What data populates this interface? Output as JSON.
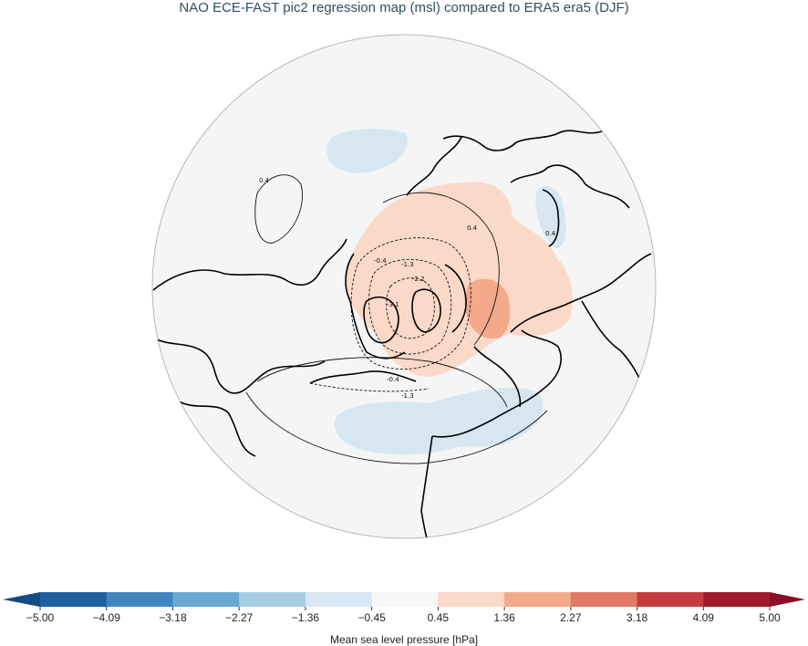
{
  "title": "NAO ECE-FAST pic2 regression map (msl) compared to ERA5 era5 (DJF)",
  "colorbar": {
    "label": "Mean sea level pressure [hPa]",
    "ticks": [
      "−5.00",
      "−4.09",
      "−3.18",
      "−2.27",
      "−1.36",
      "−0.45",
      "0.45",
      "1.36",
      "2.27",
      "3.18",
      "4.09",
      "5.00"
    ],
    "colors": [
      "#1f5fa0",
      "#3f86c0",
      "#6aa8d2",
      "#a6cce3",
      "#d6e7f1",
      "#f7f7f7",
      "#fbd9c8",
      "#f3a98a",
      "#e07a64",
      "#c53c3f",
      "#a11a2b"
    ],
    "extend_low_color": "#164a85",
    "extend_high_color": "#8b0f24"
  },
  "contour_labels": {
    "c1": "0.4",
    "c2": "0.4",
    "c3": "0.4",
    "c4": "-0.4",
    "c5": "-1.3",
    "c6": "-2.2",
    "c7": "-3.1",
    "c8": "-0.4",
    "c9": "-1.3"
  },
  "map": {
    "background": "#f5f5f5",
    "positive_shade": "#fbd9c8",
    "strong_positive_shade": "#f3a98a",
    "negative_shade": "#d6e7f1"
  }
}
